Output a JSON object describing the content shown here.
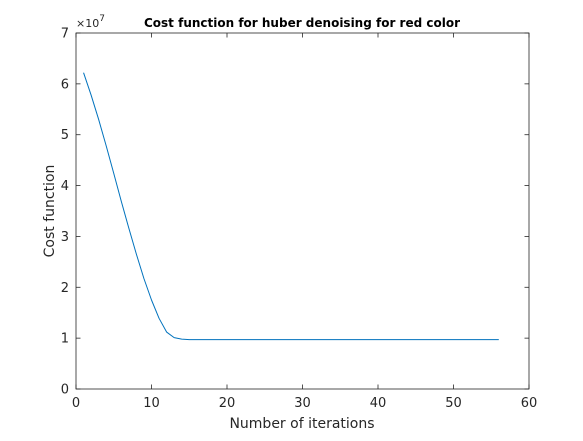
{
  "chart_data": {
    "type": "line",
    "title": "Cost function for huber denoising for red color",
    "xlabel": "Number of iterations",
    "ylabel": "Cost function",
    "xlim": [
      0,
      60
    ],
    "ylim": [
      0,
      7
    ],
    "xticks": [
      "0",
      "10",
      "20",
      "30",
      "40",
      "50",
      "60"
    ],
    "yticks": [
      "0",
      "1",
      "2",
      "3",
      "4",
      "5",
      "6",
      "7"
    ],
    "y_exponent": {
      "base": "×10",
      "power": "7"
    },
    "y_scale_factor": 10000000,
    "grid": false,
    "legend": "none",
    "line_color": "#0072BD",
    "series": [
      {
        "x": [
          1,
          2,
          3,
          4,
          5,
          6,
          7,
          8,
          9,
          10,
          11,
          12,
          13,
          14,
          15,
          16,
          17,
          18,
          19,
          20,
          21,
          22,
          23,
          24,
          25,
          26,
          27,
          28,
          29,
          30,
          31,
          32,
          33,
          34,
          35,
          36,
          37,
          38,
          39,
          40,
          41,
          42,
          43,
          44,
          45,
          46,
          47,
          48,
          49,
          50,
          51,
          52,
          53,
          54,
          55,
          56
        ],
        "values": [
          6.22,
          5.78,
          5.3,
          4.78,
          4.24,
          3.69,
          3.16,
          2.65,
          2.17,
          1.75,
          1.39,
          1.12,
          1.01,
          0.98,
          0.97,
          0.97,
          0.97,
          0.97,
          0.97,
          0.97,
          0.97,
          0.97,
          0.97,
          0.97,
          0.97,
          0.97,
          0.97,
          0.97,
          0.97,
          0.97,
          0.97,
          0.97,
          0.97,
          0.97,
          0.97,
          0.97,
          0.97,
          0.97,
          0.97,
          0.97,
          0.97,
          0.97,
          0.97,
          0.97,
          0.97,
          0.97,
          0.97,
          0.97,
          0.97,
          0.97,
          0.97,
          0.97,
          0.97,
          0.97,
          0.97,
          0.97
        ]
      }
    ]
  }
}
